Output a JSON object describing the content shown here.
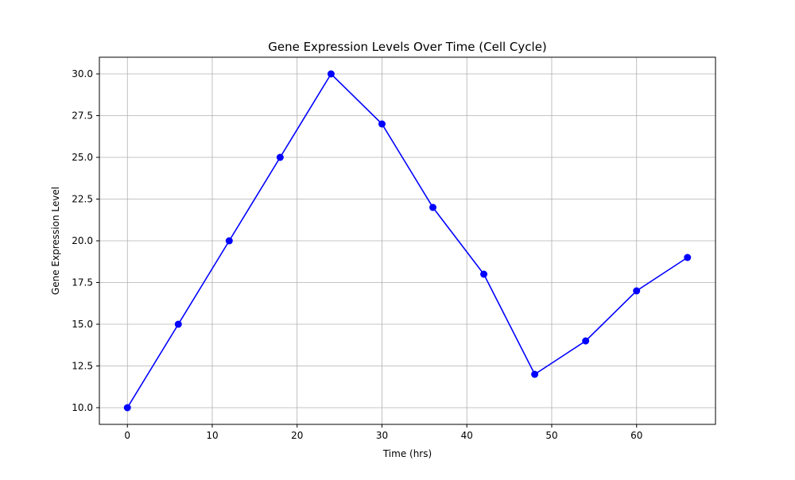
{
  "chart_data": {
    "type": "line",
    "title": "Gene Expression Levels Over Time (Cell Cycle)",
    "xlabel": "Time (hrs)",
    "ylabel": "Gene Expression Level",
    "x": [
      0,
      6,
      12,
      18,
      24,
      30,
      36,
      42,
      48,
      54,
      60,
      66
    ],
    "series": [
      {
        "values": [
          10,
          15,
          20,
          25,
          30,
          27,
          22,
          18,
          12,
          14,
          17,
          19
        ],
        "color": "#0000ff",
        "marker": "circle"
      }
    ],
    "xlim": [
      -3.3,
      69.3
    ],
    "ylim": [
      9,
      31
    ],
    "xticks": [
      0,
      10,
      20,
      30,
      40,
      50,
      60
    ],
    "xtick_labels": [
      "0",
      "10",
      "20",
      "30",
      "40",
      "50",
      "60"
    ],
    "yticks": [
      10,
      12.5,
      15,
      17.5,
      20,
      22.5,
      25,
      27.5,
      30
    ],
    "ytick_labels": [
      "10.0",
      "12.5",
      "15.0",
      "17.5",
      "20.0",
      "22.5",
      "25.0",
      "27.5",
      "30.0"
    ],
    "grid": true,
    "grid_color": "#b0b0b0",
    "legend": "none"
  }
}
